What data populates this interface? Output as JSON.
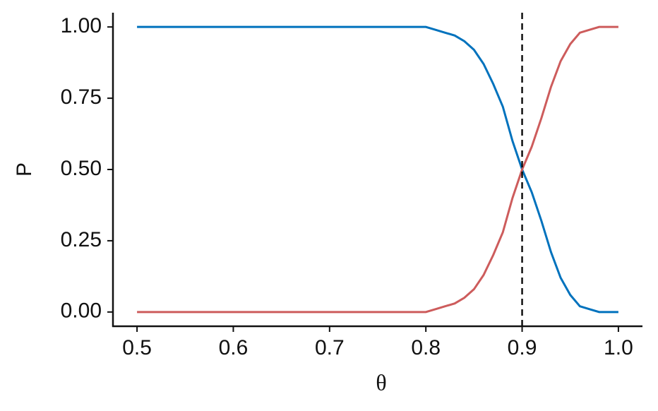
{
  "chart_data": {
    "type": "line",
    "x_label": "θ",
    "y_label": "P",
    "x": [
      0.5,
      0.6,
      0.7,
      0.8,
      0.81,
      0.82,
      0.83,
      0.84,
      0.85,
      0.86,
      0.87,
      0.88,
      0.89,
      0.9,
      0.91,
      0.92,
      0.93,
      0.94,
      0.95,
      0.96,
      0.97,
      0.98,
      0.99,
      1.0
    ],
    "series": [
      {
        "color": "#0072bd",
        "values": [
          1,
          1,
          1,
          1,
          0.99,
          0.98,
          0.97,
          0.95,
          0.92,
          0.87,
          0.8,
          0.72,
          0.6,
          0.5,
          0.42,
          0.32,
          0.21,
          0.12,
          0.06,
          0.02,
          0.01,
          0,
          0,
          0
        ]
      },
      {
        "color": "#cd5c5c",
        "values": [
          0,
          0,
          0,
          0,
          0.01,
          0.02,
          0.03,
          0.05,
          0.08,
          0.13,
          0.2,
          0.28,
          0.4,
          0.5,
          0.58,
          0.68,
          0.79,
          0.88,
          0.94,
          0.98,
          0.99,
          1,
          1,
          1
        ]
      }
    ],
    "vline": 0.9,
    "xlim": [
      0.475,
      1.025
    ],
    "ylim": [
      -0.05,
      1.05
    ],
    "xticks": [
      0.5,
      0.6,
      0.7,
      0.8,
      0.9,
      {
        "value": 1.0,
        "label": "1.0"
      }
    ],
    "yticks": [
      {
        "value": 0,
        "label": "0.00"
      },
      {
        "value": 0.25,
        "label": "0.25"
      },
      {
        "value": 0.5,
        "label": "0.50"
      },
      {
        "value": 0.75,
        "label": "0.75"
      },
      {
        "value": 1,
        "label": "1.00"
      }
    ],
    "grid": false
  }
}
